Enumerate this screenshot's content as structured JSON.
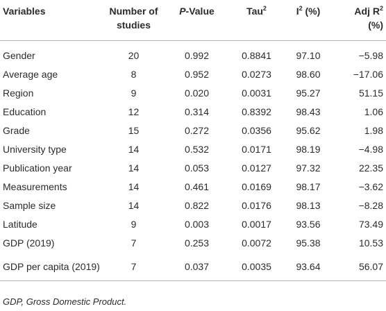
{
  "table": {
    "align": [
      "left",
      "center",
      "center",
      "center",
      "center",
      "right"
    ],
    "header": [
      [
        {
          "text": "Variables"
        }
      ],
      [
        {
          "text": "Number of studies"
        }
      ],
      [
        {
          "text": "P",
          "style": "italic"
        },
        {
          "text": "-Value"
        }
      ],
      [
        {
          "text": "Tau"
        },
        {
          "text": "2",
          "style": "sup"
        }
      ],
      [
        {
          "text": "I"
        },
        {
          "text": "2",
          "style": "sup"
        },
        {
          "text": " (%)"
        }
      ],
      [
        {
          "text": "Adj R"
        },
        {
          "text": "2",
          "style": "sup"
        },
        {
          "text": " (%)"
        }
      ]
    ],
    "rows": [
      [
        "Gender",
        "20",
        "0.992",
        "0.8841",
        "97.10",
        "−5.98"
      ],
      [
        "Average age",
        "8",
        "0.952",
        "0.0273",
        "98.60",
        "−17.06"
      ],
      [
        "Region",
        "9",
        "0.020",
        "0.0031",
        "95.27",
        "51.15"
      ],
      [
        "Education",
        "12",
        "0.314",
        "0.8392",
        "98.43",
        "1.06"
      ],
      [
        "Grade",
        "15",
        "0.272",
        "0.0356",
        "95.62",
        "1.98"
      ],
      [
        "University type",
        "14",
        "0.532",
        "0.0171",
        "98.19",
        "−4.98"
      ],
      [
        "Publication year",
        "14",
        "0.053",
        "0.0127",
        "97.32",
        "22.35"
      ],
      [
        "Measurements",
        "14",
        "0.461",
        "0.0169",
        "98.17",
        "−3.62"
      ],
      [
        "Sample size",
        "14",
        "0.822",
        "0.0176",
        "98.13",
        "−8.28"
      ],
      [
        "Latitude",
        "9",
        "0.003",
        "0.0017",
        "93.56",
        "73.49"
      ],
      [
        "GDP (2019)",
        "7",
        "0.253",
        "0.0072",
        "95.38",
        "10.53"
      ],
      [
        "GDP per capita (2019)",
        "7",
        "0.037",
        "0.0035",
        "93.64",
        "56.07"
      ]
    ],
    "footnote": "GDP, Gross Domestic Product."
  }
}
